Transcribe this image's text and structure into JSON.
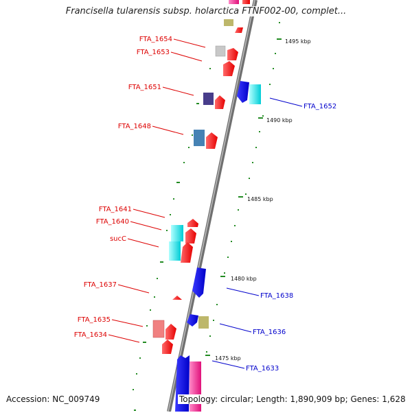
{
  "header": {
    "title": "Francisella tularensis subsp. holarctica FTNF002-00, complet..."
  },
  "footer": {
    "accession": "Accession: NC_009749",
    "topology": "Topology: circular; Length: 1,890,909 bp; Genes: 1,628"
  },
  "scale_marks": [
    {
      "label": "1495 kbp"
    },
    {
      "label": "1490 kbp"
    },
    {
      "label": "1485 kbp"
    },
    {
      "label": "1480 kbp"
    },
    {
      "label": "1475 kbp"
    }
  ],
  "gene_labels": {
    "forward": [
      "FTA_1654",
      "FTA_1653",
      "FTA_1651",
      "FTA_1648",
      "FTA_1641",
      "FTA_1640",
      "sucC",
      "FTA_1637",
      "FTA_1635",
      "FTA_1634"
    ],
    "reverse": [
      "FTA_1652",
      "FTA_1638",
      "FTA_1636",
      "FTA_1633"
    ]
  },
  "colors": {
    "backbone": "#808080",
    "forward_gene": "#ff0000",
    "reverse_gene": "#0000ff",
    "forward_label": "#dd0000",
    "reverse_label": "#0000cc",
    "tick": "#228b22",
    "cyan_feature": "#00e5ee",
    "khaki_feature": "#bdb76b",
    "steelblue_feature": "#4682b4",
    "slateblue_feature": "#483d8b",
    "silver_feature": "#c0c0c0",
    "salmon_feature": "#f08080",
    "pink_feature": "#ff1493"
  }
}
